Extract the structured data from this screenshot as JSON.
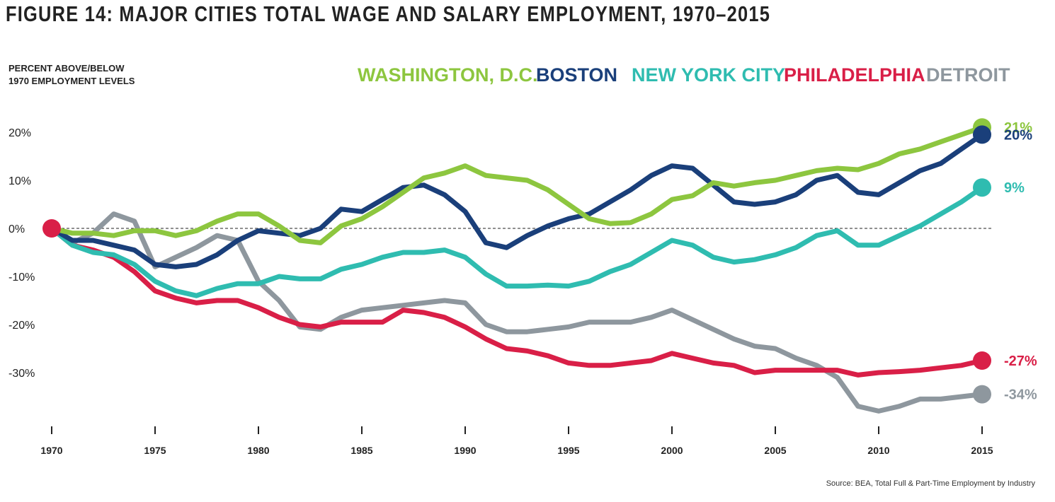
{
  "figure": {
    "title": "FIGURE 14: MAJOR CITIES TOTAL WAGE AND SALARY EMPLOYMENT, 1970–2015",
    "ylabel_line1": "PERCENT ABOVE/BELOW",
    "ylabel_line2": "1970 EMPLOYMENT LEVELS",
    "source": "Source: BEA, Total Full & Part-Time Employment by Industry"
  },
  "chart_data": {
    "type": "line",
    "title": "FIGURE 14: MAJOR CITIES TOTAL WAGE AND SALARY EMPLOYMENT, 1970–2015",
    "ylabel": "PERCENT ABOVE/BELOW 1970 EMPLOYMENT LEVELS",
    "xlabel": "",
    "xlim": [
      1970,
      2015
    ],
    "ylim": [
      -42,
      25
    ],
    "y_ticks": [
      20,
      10,
      0,
      -10,
      -20,
      -30
    ],
    "y_tick_labels": [
      "20%",
      "10%",
      "0%",
      "-10%",
      "-20%",
      "-30%"
    ],
    "x_ticks": [
      1970,
      1975,
      1980,
      1985,
      1990,
      1995,
      2000,
      2005,
      2010,
      2015
    ],
    "x_tick_labels": [
      "1970",
      "1975",
      "1980",
      "1985",
      "1990",
      "1995",
      "2000",
      "2005",
      "2010",
      "2015"
    ],
    "zero_line": "dashed",
    "grid": false,
    "legend_position": "top",
    "x": [
      1970,
      1971,
      1972,
      1973,
      1974,
      1975,
      1976,
      1977,
      1978,
      1979,
      1980,
      1981,
      1982,
      1983,
      1984,
      1985,
      1986,
      1987,
      1988,
      1989,
      1990,
      1991,
      1992,
      1993,
      1994,
      1995,
      1996,
      1997,
      1998,
      1999,
      2000,
      2001,
      2002,
      2003,
      2004,
      2005,
      2006,
      2007,
      2008,
      2009,
      2010,
      2011,
      2012,
      2013,
      2014,
      2015
    ],
    "series": [
      {
        "name": "WASHINGTON, D.C.",
        "color": "#8dc63f",
        "end_label": "21%",
        "values": [
          0,
          -1,
          -1,
          -1.5,
          -0.5,
          -0.5,
          -1.5,
          -0.5,
          1.5,
          3,
          3,
          0.5,
          -2.5,
          -3,
          0.5,
          2,
          4.5,
          7.5,
          10.5,
          11.5,
          13,
          11,
          10.5,
          10,
          8,
          5,
          2,
          1,
          1.2,
          3,
          6,
          6.8,
          9.5,
          8.8,
          9.5,
          10,
          11,
          12,
          12.5,
          12.2,
          13.5,
          15.5,
          16.5,
          18,
          19.5,
          21
        ]
      },
      {
        "name": "BOSTON",
        "color": "#1a3f7a",
        "end_label": "20%",
        "values": [
          0,
          -2.5,
          -2.5,
          -3.5,
          -4.5,
          -7.5,
          -8,
          -7.5,
          -5.5,
          -2.5,
          -0.5,
          -1,
          -1.5,
          0,
          4,
          3.5,
          6,
          8.5,
          9,
          7,
          3.5,
          -3,
          -4,
          -1.5,
          0.5,
          2,
          3,
          5.5,
          8,
          11,
          13,
          12.5,
          9,
          5.5,
          5,
          5.5,
          7,
          10,
          11,
          7.5,
          7,
          9.5,
          12,
          13.5,
          16.5,
          19.5
        ]
      },
      {
        "name": "NEW YORK CITY",
        "color": "#2fbcb0",
        "end_label": "9%",
        "values": [
          0,
          -3.5,
          -5,
          -5.5,
          -7.5,
          -11,
          -13,
          -14,
          -12.5,
          -11.5,
          -11.5,
          -10,
          -10.5,
          -10.5,
          -8.5,
          -7.5,
          -6,
          -5,
          -5,
          -4.5,
          -6,
          -9.5,
          -12,
          -12,
          -11.8,
          -12,
          -11,
          -9,
          -7.5,
          -5,
          -2.5,
          -3.5,
          -6,
          -7,
          -6.5,
          -5.5,
          -4,
          -1.5,
          -0.5,
          -3.5,
          -3.5,
          -1.5,
          0.5,
          3,
          5.5,
          8.5
        ]
      },
      {
        "name": "PHILADELPHIA",
        "color": "#d91f47",
        "end_label": "-27%",
        "values": [
          0,
          -3.5,
          -4.5,
          -6,
          -9,
          -13,
          -14.5,
          -15.5,
          -15,
          -15,
          -16.5,
          -18.5,
          -20,
          -20.5,
          -19.5,
          -19.5,
          -19.5,
          -17,
          -17.5,
          -18.5,
          -20.5,
          -23,
          -25,
          -25.5,
          -26.5,
          -28,
          -28.5,
          -28.5,
          -28,
          -27.5,
          -26,
          -27,
          -28,
          -28.5,
          -30,
          -29.5,
          -29.5,
          -29.5,
          -29.5,
          -30.5,
          -30,
          -29.8,
          -29.5,
          -29,
          -28.5,
          -27.5
        ]
      },
      {
        "name": "DETROIT",
        "color": "#8e979e",
        "end_label": "-34%",
        "values": [
          0,
          -3,
          -1,
          3,
          1.5,
          -8,
          -6,
          -4,
          -1.5,
          -2.5,
          -11,
          -15,
          -20.5,
          -21,
          -18.5,
          -17,
          -16.5,
          -16,
          -15.5,
          -15,
          -15.5,
          -20,
          -21.5,
          -21.5,
          -21,
          -20.5,
          -19.5,
          -19.5,
          -19.5,
          -18.5,
          -17,
          -19,
          -21,
          -23,
          -24.5,
          -25,
          -27,
          -28.5,
          -31,
          -37,
          -38,
          -37,
          -35.5,
          -35.5,
          -35,
          -34.5
        ]
      }
    ]
  }
}
